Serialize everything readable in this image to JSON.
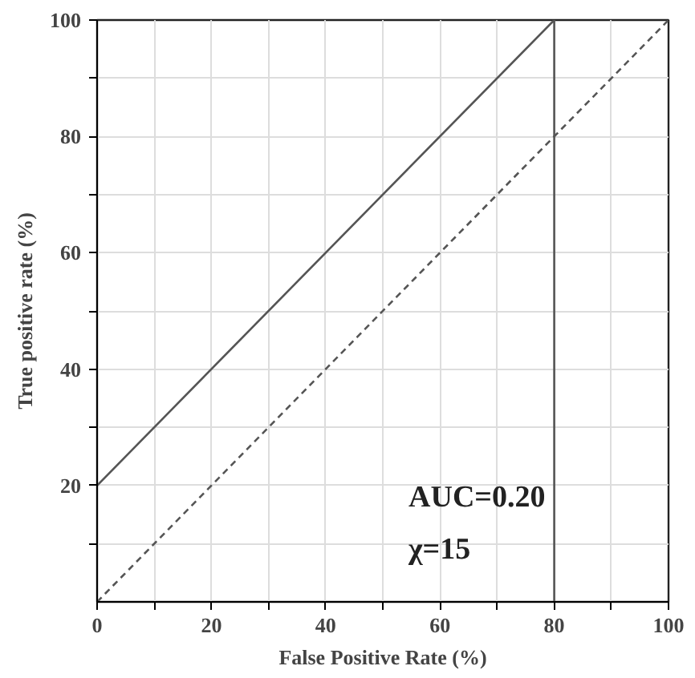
{
  "chart_data": {
    "type": "line",
    "xlabel": "False Positive Rate (%)",
    "ylabel": "True positive rate (%)",
    "series": [
      {
        "color": "#555555",
        "values": [
          20,
          100,
          0
        ],
        "x": [
          0,
          80,
          80
        ],
        "line_style": "solid"
      },
      {
        "color": "#555555",
        "values": [
          0,
          100
        ],
        "x": [
          0,
          100
        ],
        "line_style": "dashed"
      }
    ],
    "xlim": [
      0,
      100
    ],
    "ylim": [
      0,
      100
    ],
    "xticks": [
      0,
      {
        "value": 10,
        "label": null
      },
      20,
      {
        "value": 30,
        "label": null
      },
      40,
      {
        "value": 50,
        "label": null
      },
      60,
      {
        "value": 70,
        "label": null
      },
      80,
      {
        "value": 90,
        "label": null
      },
      100
    ],
    "yticks": [
      {
        "value": 10,
        "label": null
      },
      20,
      {
        "value": 30,
        "label": null
      },
      40,
      {
        "value": 50,
        "label": null
      },
      60,
      {
        "value": 70,
        "label": null
      },
      80,
      {
        "value": 90,
        "label": null
      },
      100
    ],
    "grid": true,
    "marker": "none",
    "annotations": [
      "AUC=0.20",
      "χ=15"
    ]
  }
}
